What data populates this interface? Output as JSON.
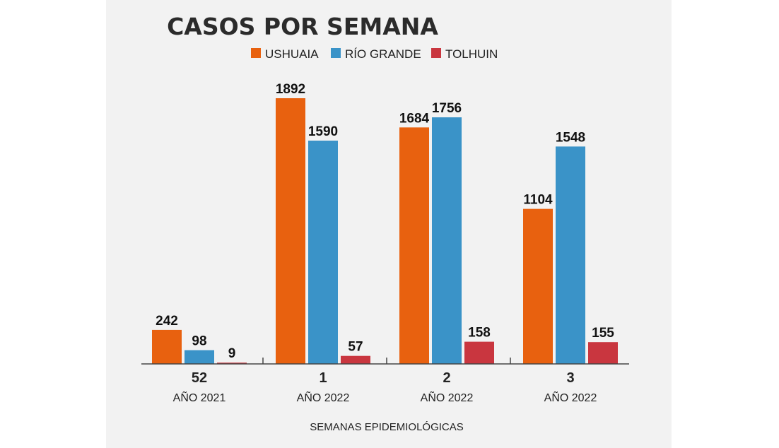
{
  "chart_data": {
    "type": "bar",
    "title": "CASOS POR SEMANA",
    "xlabel": "SEMANAS EPIDEMIOLÓGICAS",
    "ylabel": "",
    "ylim": [
      0,
      1900
    ],
    "grid": false,
    "legend_position": "top",
    "categories": [
      "52",
      "1",
      "2",
      "3"
    ],
    "category_sublabels": [
      "AÑO 2021",
      "AÑO 2022",
      "AÑO 2022",
      "AÑO 2022"
    ],
    "series": [
      {
        "name": "USHUAIA",
        "color": "#e8610f",
        "values": [
          242,
          1892,
          1684,
          1104
        ]
      },
      {
        "name": "RÍO GRANDE",
        "color": "#3a93c8",
        "values": [
          98,
          1590,
          1756,
          1548
        ]
      },
      {
        "name": "TOLHUIN",
        "color": "#c9363f",
        "values": [
          9,
          57,
          158,
          155
        ]
      }
    ]
  }
}
